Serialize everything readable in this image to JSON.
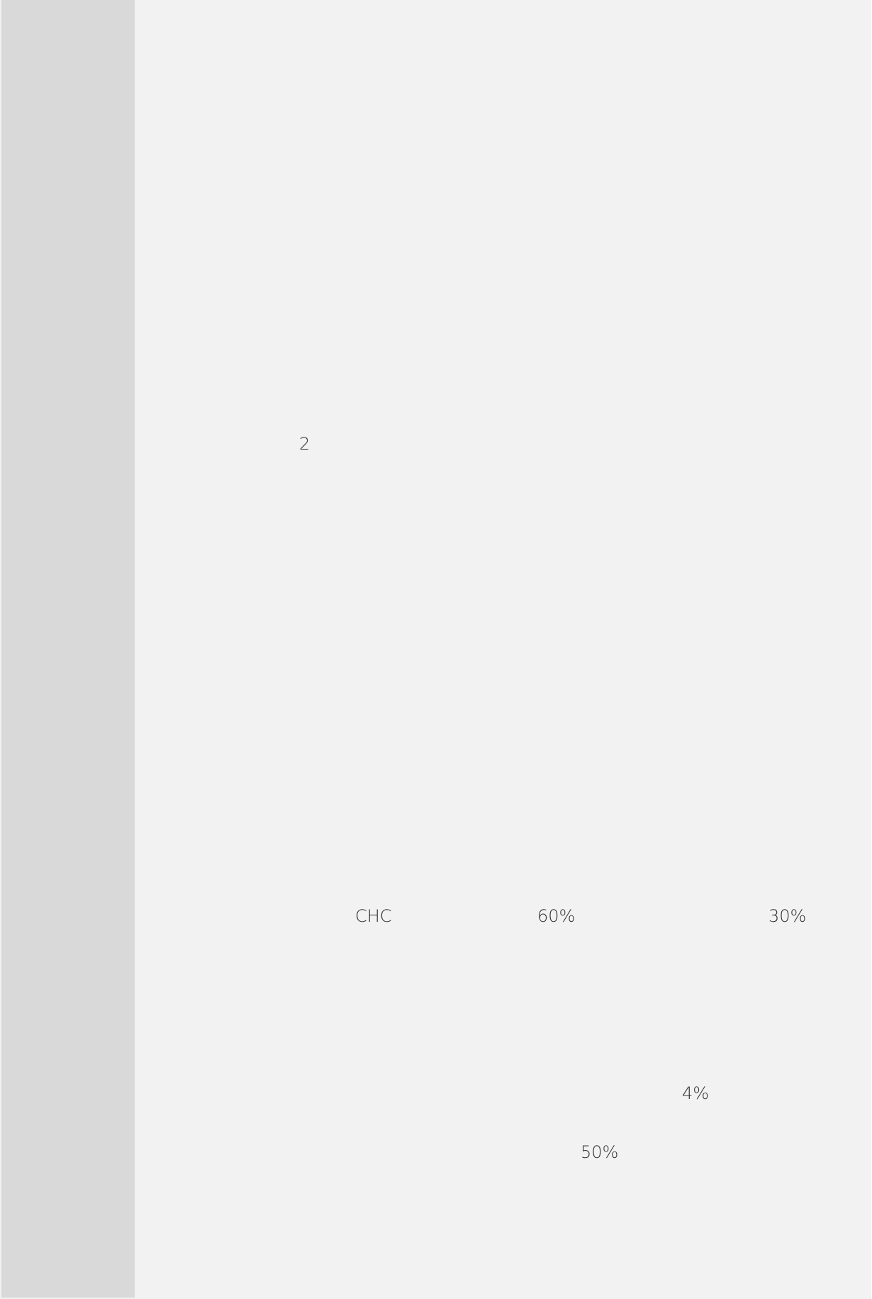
{
  "slide": {
    "number_label": "2",
    "row": {
      "label": "CHC",
      "value_a": "60%",
      "value_b": "30%"
    },
    "value_c": "4%",
    "value_d": "50%"
  },
  "colors": {
    "page_background": "#f2f2f2",
    "side_bar": "#d9d9d9",
    "text": "#333333"
  }
}
